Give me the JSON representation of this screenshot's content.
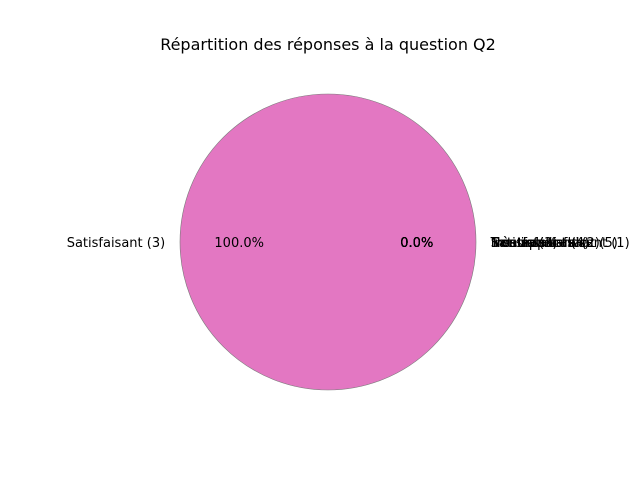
{
  "chart_data": {
    "type": "pie",
    "title": "Répartition des réponses à la question Q2",
    "slices": [
      {
        "label": "Très insatisfaisant (1)",
        "value": 0,
        "pct_label": "0.0%",
        "color": "#1f77b4"
      },
      {
        "label": "Insatisfaisant (2)",
        "value": 0,
        "pct_label": "0.0%",
        "color": "#ff7f0e"
      },
      {
        "label": "Neutre (3)",
        "value": 0,
        "pct_label": "0.0%",
        "color": "#2ca02c"
      },
      {
        "label": "Satisfaisant (4)",
        "value": 0,
        "pct_label": "0.0%",
        "color": "#d62728"
      },
      {
        "label": "Très satisfaisant (5)",
        "value": 0,
        "pct_label": "0.0%",
        "color": "#9467bd"
      },
      {
        "label": "Non applicable",
        "value": 0,
        "pct_label": "0.0%",
        "color": "#8c564b"
      },
      {
        "label": "Satisfaisant (3)",
        "value": 1,
        "pct_label": "100.0%",
        "color": "#e377c2"
      }
    ],
    "start_angle": 0,
    "direction": "counterclockwise"
  }
}
